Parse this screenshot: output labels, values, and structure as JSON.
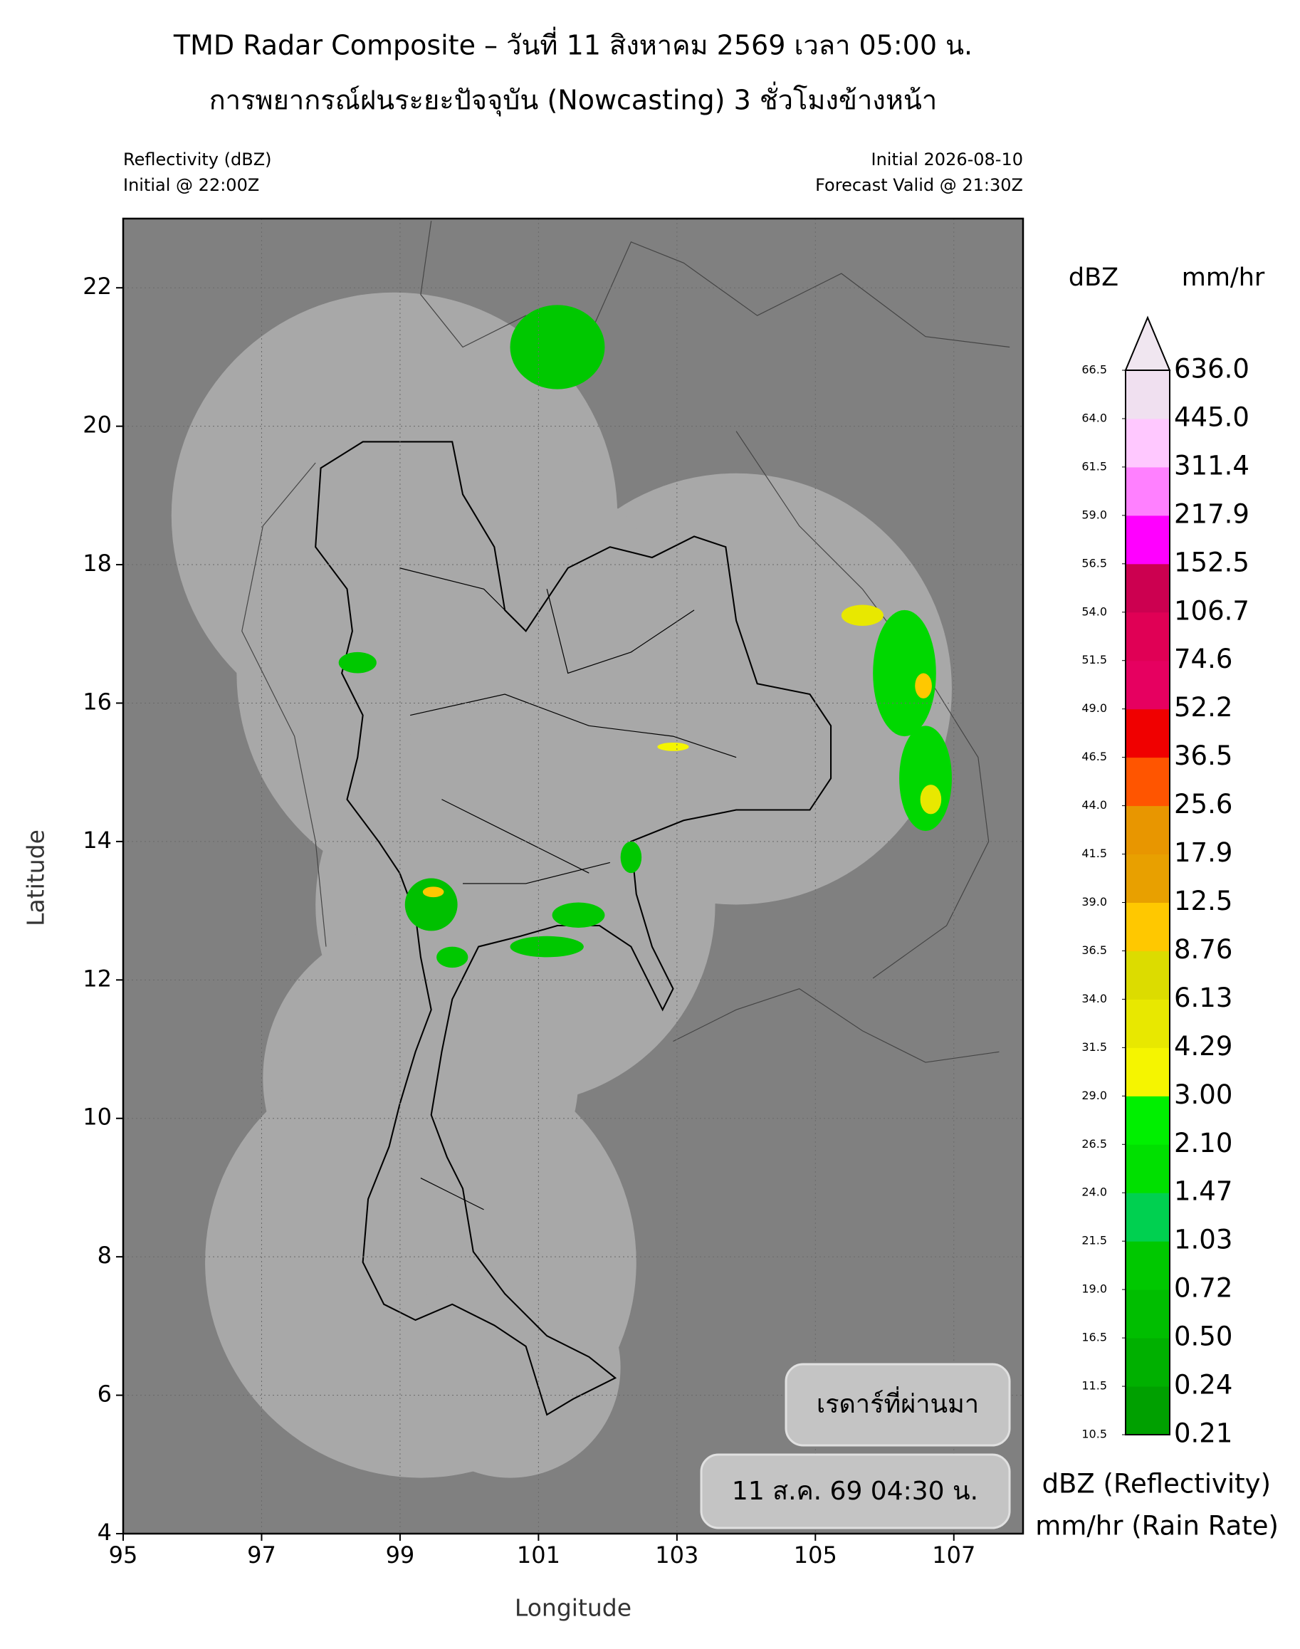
{
  "chart_data": {
    "type": "map",
    "title": "TMD Radar Composite – วันที่ 11 สิงหาคม 2569 เวลา 05:00 น.",
    "subtitle": "การพยากรณ์ฝนระยะปัจจุบัน (Nowcasting) 3 ชั่วโมงข้างหน้า",
    "left_header": [
      "Reflectivity (dBZ)",
      "Initial @ 22:00Z"
    ],
    "right_header": [
      "Initial 2026-08-10",
      "Forecast Valid @ 21:30Z"
    ],
    "x_label": "Longitude",
    "y_label": "Latitude",
    "xlim": [
      95,
      108
    ],
    "ylim": [
      4,
      23
    ],
    "xticks": [
      95,
      97,
      99,
      101,
      103,
      105,
      107
    ],
    "yticks": [
      4,
      6,
      8,
      10,
      12,
      14,
      16,
      18,
      20,
      22
    ],
    "grid": true,
    "colorbar": {
      "left_title": "dBZ",
      "right_title": "mm/hr",
      "levels": [
        10.5,
        11.5,
        16.5,
        {
          "value": 19,
          "label": "19.0"
        },
        21.5,
        {
          "value": 24,
          "label": "24.0"
        },
        26.5,
        {
          "value": 29,
          "label": "29.0"
        },
        31.5,
        {
          "value": 34,
          "label": "34.0"
        },
        36.5,
        {
          "value": 39,
          "label": "39.0"
        },
        41.5,
        {
          "value": 44,
          "label": "44.0"
        },
        46.5,
        {
          "value": 49,
          "label": "49.0"
        },
        51.5,
        {
          "value": 54,
          "label": "54.0"
        },
        56.5,
        {
          "value": 59,
          "label": "59.0"
        },
        61.5,
        {
          "value": 64,
          "label": "64.0"
        },
        66.5
      ],
      "rain_rates": [
        0.21,
        0.24,
        {
          "value": 0.5,
          "label": "0.50"
        },
        0.72,
        1.03,
        1.47,
        {
          "value": 2.1,
          "label": "2.10"
        },
        {
          "value": 3,
          "label": "3.00"
        },
        4.29,
        6.13,
        8.76,
        12.5,
        17.9,
        25.6,
        36.5,
        52.2,
        74.6,
        106.7,
        152.5,
        217.9,
        311.4,
        {
          "value": 445,
          "label": "445.0"
        },
        {
          "value": 636,
          "label": "636.0"
        }
      ],
      "colors": [
        "#00a000",
        "#00b000",
        "#00be00",
        "#00c800",
        "#00d050",
        "#00e000",
        "#00f000",
        "#f5f500",
        "#e8e800",
        "#dcdc00",
        "#ffc800",
        "#e8a000",
        "#e89600",
        "#ff5500",
        "#f00000",
        "#e60060",
        "#e00055",
        "#cc0050",
        "#ff00ff",
        "#ff80ff",
        "#ffc8ff",
        "#f0e0f0"
      ],
      "extend_color": "#f0e6f0",
      "legend_lines": [
        "dBZ (Reflectivity)",
        "mm/hr (Rain Rate)"
      ]
    }
  },
  "buttons": [
    "เรดาร์ที่ผ่านมา",
    "11 ส.ค. 69 04:30 น."
  ]
}
